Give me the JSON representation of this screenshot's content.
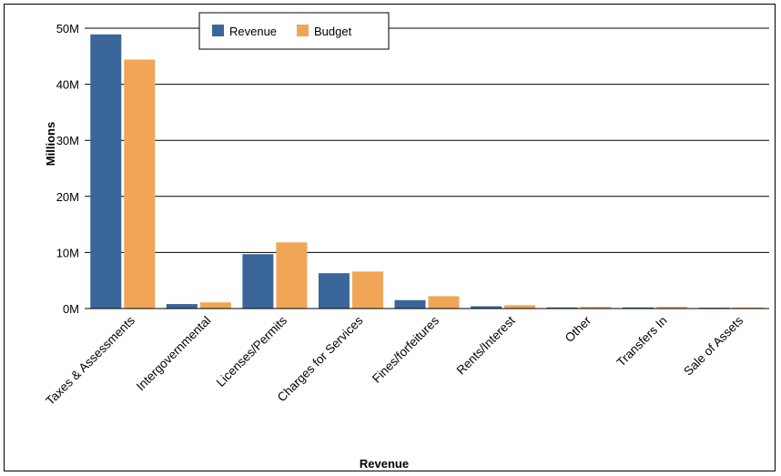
{
  "chart_data": {
    "type": "bar",
    "title": "",
    "xlabel": "Revenue",
    "ylabel": "Millions",
    "ylim": [
      0,
      50
    ],
    "yticks": [
      0,
      10,
      20,
      30,
      40,
      50
    ],
    "ytick_labels": [
      "0M",
      "10M",
      "20M",
      "30M",
      "40M",
      "50M"
    ],
    "grid": true,
    "legend_position": "top-center",
    "categories": [
      "Taxes & Assessments",
      "Intergovernmental",
      "Licenses/Permits",
      "Charges for Services",
      "Fines/forfeitures",
      "Rents/Interest",
      "Other",
      "Transfers In",
      "Sale of Assets"
    ],
    "series": [
      {
        "name": "Revenue",
        "color": "#3a6699",
        "values": [
          48.9,
          0.8,
          9.7,
          6.3,
          1.5,
          0.4,
          0.2,
          0.2,
          0.15
        ]
      },
      {
        "name": "Budget",
        "color": "#f0a656",
        "values": [
          44.4,
          1.1,
          11.8,
          6.6,
          2.2,
          0.6,
          0.3,
          0.3,
          0.2
        ]
      }
    ]
  }
}
